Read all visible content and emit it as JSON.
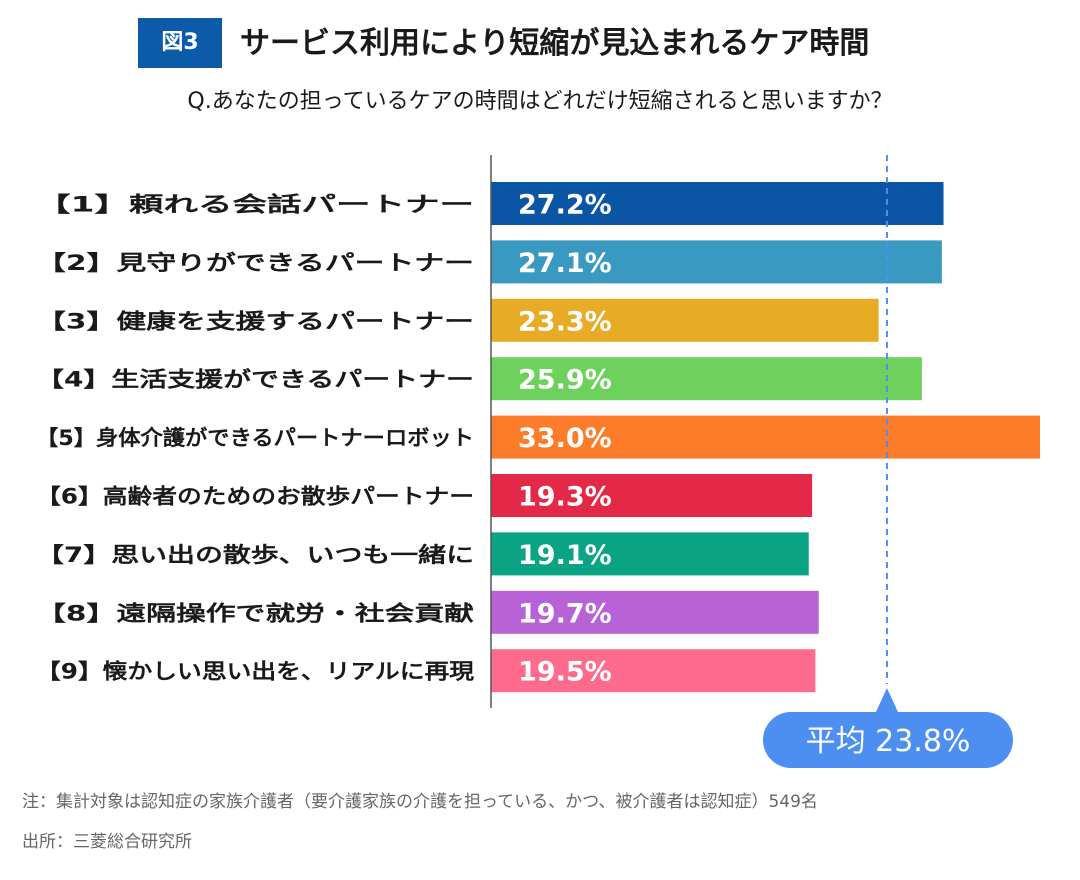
{
  "header": {
    "figure_label": "図3",
    "title": "サービス利用により短縮が見込まれるケア時間",
    "question": "Q.あなたの担っているケアの時間はどれだけ短縮されると思いますか？"
  },
  "chart_data": {
    "type": "bar",
    "orientation": "horizontal",
    "categories": [
      "【1】頼れる会話パートナー",
      "【2】見守りができるパートナー",
      "【3】健康を支援するパートナー",
      "【4】生活支援ができるパートナー",
      "【5】身体介護ができるパートナーロボット",
      "【6】高齢者のためのお散歩パートナー",
      "【7】思い出の散歩、いつも一緒に",
      "【8】遠隔操作で就労・社会貢献",
      "【9】懐かしい思い出を、リアルに再現"
    ],
    "values": [
      27.2,
      27.1,
      23.3,
      25.9,
      33.0,
      19.3,
      19.1,
      19.7,
      19.5
    ],
    "value_labels": [
      "27.2%",
      "27.1%",
      "23.3%",
      "25.9%",
      "33.0%",
      "19.3%",
      "19.1%",
      "19.7%",
      "19.5%"
    ],
    "colors": [
      "#0b55a5",
      "#3a99c0",
      "#e8ab26",
      "#6ed15e",
      "#fd7c2a",
      "#e32848",
      "#0aa384",
      "#b862d8",
      "#ff6b8c"
    ],
    "xlim": [
      0,
      33.0
    ],
    "average": {
      "value": 23.8,
      "label": "平均 23.8%",
      "color": "#4d8ff0"
    },
    "grid": false
  },
  "footer": {
    "note": "注：集計対象は認知症の家族介護者（要介護家族の介護を担っている、かつ、被介護者は認知症）549名",
    "source": "出所：三菱総合研究所"
  }
}
